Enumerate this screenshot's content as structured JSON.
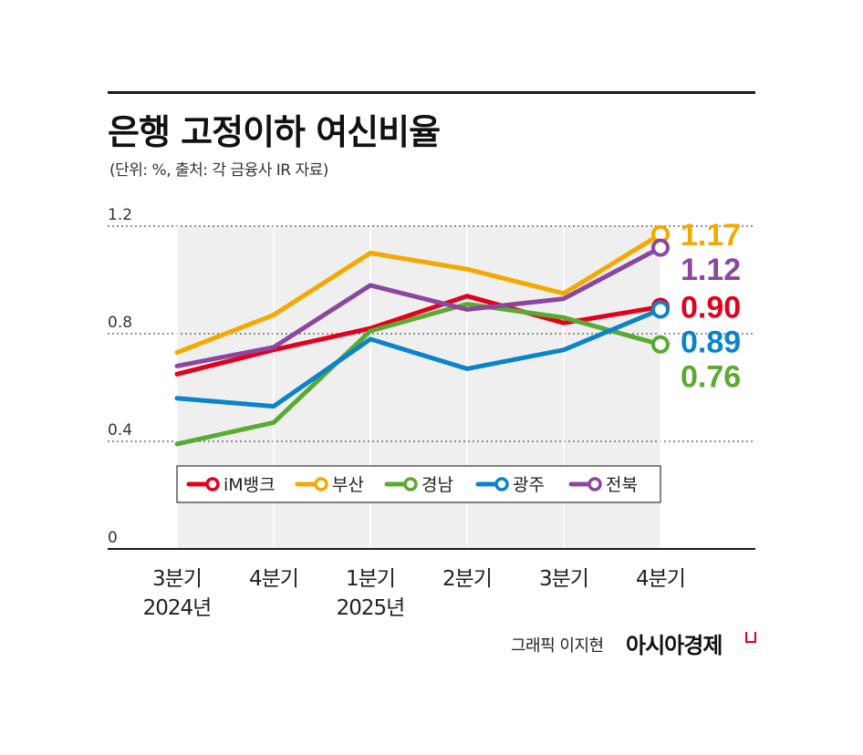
{
  "header": {
    "title": "은행 고정이하 여신비율",
    "subtitle": "(단위: %, 출처: 각 금융사 IR 자료)"
  },
  "credit": {
    "byline": "그래픽 이지현",
    "brand": "아시아경제"
  },
  "chart_data": {
    "type": "line",
    "title": "은행 고정이하 여신비율",
    "ylim": [
      0,
      1.2
    ],
    "y_ticks": [
      "0",
      "0.4",
      "0.8",
      "1.2"
    ],
    "categories": [
      "3분기\n2024년",
      "4분기",
      "1분기\n2025년",
      "2분기",
      "3분기",
      "4분기"
    ],
    "legend_position": "bottom-center",
    "grid": "dotted horizontal",
    "series": [
      {
        "name": "iM뱅크",
        "color": "#e3001b",
        "values": [
          0.65,
          0.74,
          0.82,
          0.94,
          0.84,
          0.9
        ],
        "end_label": "0.90"
      },
      {
        "name": "부산",
        "color": "#f5a800",
        "values": [
          0.73,
          0.87,
          1.1,
          1.04,
          0.95,
          1.17
        ],
        "end_label": "1.17"
      },
      {
        "name": "경남",
        "color": "#5aaa32",
        "values": [
          0.39,
          0.47,
          0.81,
          0.91,
          0.86,
          0.76
        ],
        "end_label": "0.76"
      },
      {
        "name": "광주",
        "color": "#0a84c9",
        "values": [
          0.56,
          0.53,
          0.78,
          0.67,
          0.74,
          0.89
        ],
        "end_label": "0.89"
      },
      {
        "name": "전북",
        "color": "#8b47a0",
        "values": [
          0.68,
          0.75,
          0.98,
          0.89,
          0.93,
          1.12
        ],
        "end_label": "1.12"
      }
    ]
  }
}
